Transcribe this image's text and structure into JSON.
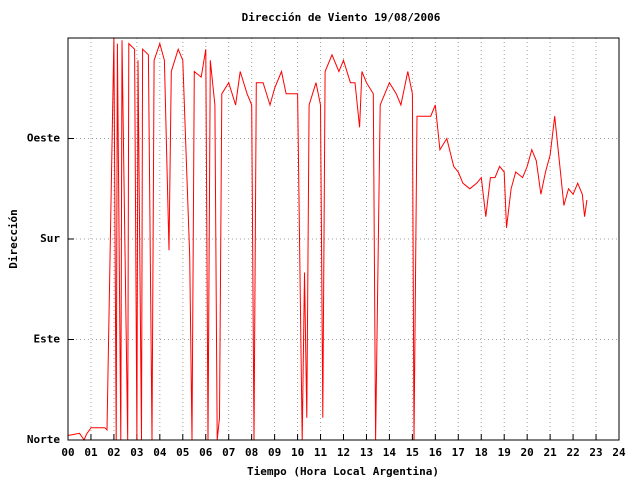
{
  "chart_data": {
    "type": "line",
    "title": "Dirección de Viento 19/08/2006",
    "xlabel": "Tiempo (Hora Local Argentina)",
    "ylabel": "Dirección",
    "color": "#ff0000",
    "grid": true,
    "xlim": [
      0,
      24
    ],
    "ylim": [
      0,
      360
    ],
    "xticks": [
      {
        "value": 0,
        "label": "00"
      },
      {
        "value": 1,
        "label": "01"
      },
      {
        "value": 2,
        "label": "02"
      },
      {
        "value": 3,
        "label": "03"
      },
      {
        "value": 4,
        "label": "04"
      },
      {
        "value": 5,
        "label": "05"
      },
      {
        "value": 6,
        "label": "06"
      },
      {
        "value": 7,
        "label": "07"
      },
      {
        "value": 8,
        "label": "08"
      },
      {
        "value": 9,
        "label": "09"
      },
      {
        "value": 10,
        "label": "10"
      },
      {
        "value": 11,
        "label": "11"
      },
      {
        "value": 12,
        "label": "12"
      },
      {
        "value": 13,
        "label": "13"
      },
      {
        "value": 14,
        "label": "14"
      },
      {
        "value": 15,
        "label": "15"
      },
      {
        "value": 16,
        "label": "16"
      },
      {
        "value": 17,
        "label": "17"
      },
      {
        "value": 18,
        "label": "18"
      },
      {
        "value": 19,
        "label": "19"
      },
      {
        "value": 20,
        "label": "20"
      },
      {
        "value": 21,
        "label": "21"
      },
      {
        "value": 22,
        "label": "22"
      },
      {
        "value": 23,
        "label": "23"
      },
      {
        "value": 24,
        "label": "24"
      }
    ],
    "yticks": [
      {
        "value": 0,
        "label": "Norte"
      },
      {
        "value": 90,
        "label": "Este"
      },
      {
        "value": 180,
        "label": "Sur"
      },
      {
        "value": 270,
        "label": "Oeste"
      }
    ],
    "x": [
      0.0,
      0.5,
      0.7,
      0.8,
      1.0,
      1.6,
      1.7,
      2.0,
      2.1,
      2.15,
      2.3,
      2.35,
      2.6,
      2.65,
      2.9,
      3.0,
      3.05,
      3.2,
      3.25,
      3.5,
      3.66,
      3.75,
      4.0,
      4.2,
      4.4,
      4.5,
      4.8,
      5.0,
      5.3,
      5.4,
      5.5,
      5.8,
      6.0,
      6.1,
      6.2,
      6.4,
      6.5,
      6.6,
      6.7,
      7.0,
      7.3,
      7.5,
      7.8,
      8.0,
      8.1,
      8.2,
      8.5,
      8.8,
      9.0,
      9.3,
      9.5,
      9.8,
      10.0,
      10.2,
      10.3,
      10.4,
      10.5,
      10.8,
      11.0,
      11.1,
      11.2,
      11.5,
      11.8,
      12.0,
      12.3,
      12.5,
      12.7,
      12.8,
      13.0,
      13.3,
      13.4,
      13.6,
      14.0,
      14.3,
      14.5,
      14.8,
      15.0,
      15.07,
      15.2,
      15.5,
      15.8,
      16.0,
      16.2,
      16.5,
      16.8,
      17.0,
      17.2,
      17.5,
      17.8,
      18.0,
      18.2,
      18.4,
      18.6,
      18.8,
      19.0,
      19.1,
      19.3,
      19.5,
      19.8,
      20.0,
      20.2,
      20.4,
      20.6,
      20.8,
      21.0,
      21.2,
      21.4,
      21.6,
      21.8,
      22.0,
      22.2,
      22.4,
      22.5,
      22.6
    ],
    "values": [
      4,
      6,
      0,
      5,
      11,
      11,
      9,
      360,
      0,
      355,
      0,
      358,
      0,
      355,
      350,
      0,
      340,
      0,
      350,
      345,
      0,
      340,
      355,
      340,
      170,
      330,
      350,
      340,
      165,
      0,
      330,
      325,
      350,
      0,
      340,
      300,
      0,
      20,
      310,
      320,
      300,
      330,
      310,
      300,
      0,
      320,
      320,
      300,
      315,
      330,
      310,
      310,
      310,
      0,
      150,
      20,
      300,
      320,
      300,
      20,
      330,
      345,
      330,
      340,
      320,
      320,
      280,
      330,
      320,
      310,
      0,
      300,
      320,
      310,
      300,
      330,
      310,
      0,
      290,
      290,
      290,
      300,
      260,
      270,
      245,
      240,
      230,
      225,
      230,
      235,
      200,
      235,
      235,
      245,
      240,
      190,
      225,
      240,
      235,
      245,
      260,
      250,
      220,
      240,
      255,
      290,
      250,
      210,
      225,
      220,
      230,
      220,
      200,
      215
    ]
  }
}
